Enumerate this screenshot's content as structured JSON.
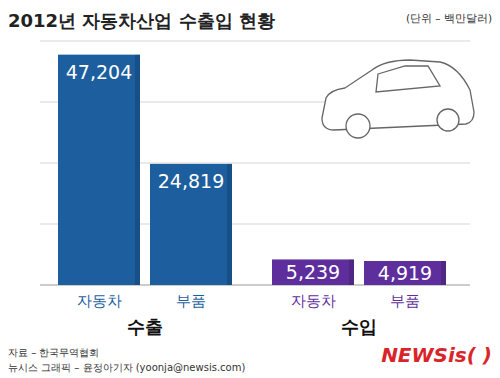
{
  "chart_data": {
    "type": "bar",
    "title": "2012년 자동차산업 수출입 현황",
    "unit": "(단위 – 백만달러)",
    "categories": [
      "자동차",
      "부품",
      "자동차",
      "부품"
    ],
    "groups": [
      {
        "label": "수출",
        "categories": [
          0,
          1
        ]
      },
      {
        "label": "수입",
        "categories": [
          2,
          3
        ]
      }
    ],
    "values": [
      47204,
      24819,
      5239,
      4919
    ],
    "value_labels": [
      "47,204",
      "24,819",
      "5,239",
      "4,919"
    ],
    "colors": [
      "#1c5e9e",
      "#1c5e9e",
      "#5e2f9c",
      "#5e2f9c"
    ],
    "data_labels": true,
    "ylim": [
      0,
      50000
    ],
    "yticks": [
      0,
      12500,
      25000,
      37500,
      50000
    ],
    "grid": true,
    "tick_labels": "x",
    "source": "자료 – 한국무역협회",
    "credit": "뉴시스 그래픽 – 윤정아기자 (yoonja@newsis.com)",
    "watermark": "NEWSis( )"
  }
}
